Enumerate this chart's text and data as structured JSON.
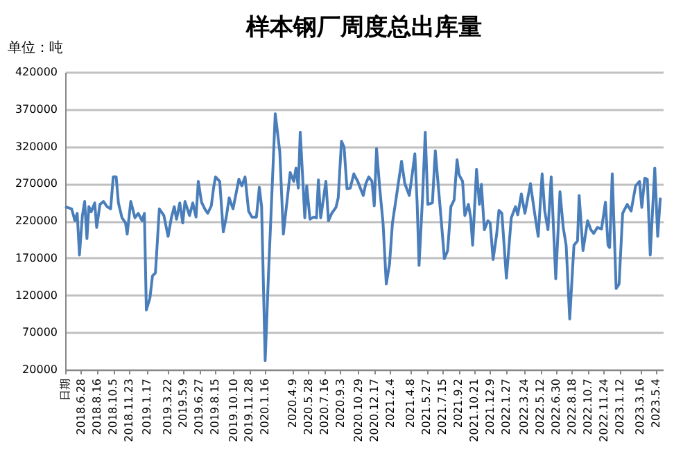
{
  "chart_data": {
    "type": "line",
    "title": "样本钢厂周度总出库量",
    "ylabel": "单位：吨",
    "color": "#4a7ebb",
    "grid": "y",
    "xlim": [
      "2018-05-10",
      "2023-05-25"
    ],
    "ylim": [
      20000,
      420000
    ],
    "yticks": [
      20000,
      70000,
      120000,
      170000,
      220000,
      270000,
      320000,
      370000,
      420000
    ],
    "xticks": [
      {
        "value": "2018-05-10",
        "label": "日期"
      },
      {
        "value": "2018-06-28",
        "label": "2018.6.28"
      },
      {
        "value": "2018-08-16",
        "label": "2018.8.16"
      },
      {
        "value": "2018-10-05",
        "label": "2018.10.5"
      },
      {
        "value": "2018-11-23",
        "label": "2018.11.23"
      },
      {
        "value": "2019-01-17",
        "label": "2019.1.17"
      },
      {
        "value": "2019-03-22",
        "label": "2019.3.22"
      },
      {
        "value": "2019-05-09",
        "label": "2019.5.9"
      },
      {
        "value": "2019-06-27",
        "label": "2019.6.27"
      },
      {
        "value": "2019-08-15",
        "label": "2019.8.15"
      },
      {
        "value": "2019-10-10",
        "label": "2019.10.10"
      },
      {
        "value": "2019-11-28",
        "label": "2019.11.28"
      },
      {
        "value": "2020-01-16",
        "label": "2020.1.16"
      },
      {
        "value": "2020-04-09",
        "label": "2020.4.9"
      },
      {
        "value": "2020-05-28",
        "label": "2020.5.28"
      },
      {
        "value": "2020-07-16",
        "label": "2020.7.16"
      },
      {
        "value": "2020-09-03",
        "label": "2020.9.3"
      },
      {
        "value": "2020-10-29",
        "label": "2020.10.29"
      },
      {
        "value": "2020-12-17",
        "label": "2020.12.17"
      },
      {
        "value": "2021-02-04",
        "label": "2021.2.4"
      },
      {
        "value": "2021-04-08",
        "label": "2021.4.8"
      },
      {
        "value": "2021-05-27",
        "label": "2021.5.27"
      },
      {
        "value": "2021-07-15",
        "label": "2021.7.15"
      },
      {
        "value": "2021-09-02",
        "label": "2021.9.2"
      },
      {
        "value": "2021-10-21",
        "label": "2021.10.21"
      },
      {
        "value": "2021-12-09",
        "label": "2021.12.9"
      },
      {
        "value": "2022-01-27",
        "label": "2022.1.27"
      },
      {
        "value": "2022-03-24",
        "label": "2022.3.24"
      },
      {
        "value": "2022-05-12",
        "label": "2022.5.12"
      },
      {
        "value": "2022-06-30",
        "label": "2022.6.30"
      },
      {
        "value": "2022-08-18",
        "label": "2022.8.18"
      },
      {
        "value": "2022-10-07",
        "label": "2022.10.7"
      },
      {
        "value": "2022-11-24",
        "label": "2022.11.24"
      },
      {
        "value": "2023-01-12",
        "label": "2023.1.12"
      },
      {
        "value": "2023-03-16",
        "label": "2023.3.16"
      },
      {
        "value": "2023-05-04",
        "label": "2023.5.4"
      }
    ],
    "x": [
      "2018-05-10",
      "2018-05-30",
      "2018-06-09",
      "2018-06-16",
      "2018-06-23",
      "2018-07-02",
      "2018-07-09",
      "2018-07-16",
      "2018-07-22",
      "2018-07-29",
      "2018-08-09",
      "2018-08-15",
      "2018-08-25",
      "2018-09-05",
      "2018-09-16",
      "2018-09-27",
      "2018-10-05",
      "2018-10-14",
      "2018-10-21",
      "2018-11-01",
      "2018-11-12",
      "2018-11-17",
      "2018-11-28",
      "2018-12-11",
      "2018-12-21",
      "2019-01-02",
      "2019-01-09",
      "2019-01-15",
      "2019-01-26",
      "2019-02-03",
      "2019-02-12",
      "2019-02-24",
      "2019-03-10",
      "2019-03-23",
      "2019-04-02",
      "2019-04-11",
      "2019-04-18",
      "2019-04-28",
      "2019-05-07",
      "2019-05-14",
      "2019-05-28",
      "2019-06-07",
      "2019-06-17",
      "2019-06-24",
      "2019-07-04",
      "2019-07-14",
      "2019-07-23",
      "2019-08-03",
      "2019-08-10",
      "2019-08-16",
      "2019-08-29",
      "2019-09-09",
      "2019-09-19",
      "2019-09-27",
      "2019-10-09",
      "2019-10-27",
      "2019-11-05",
      "2019-11-15",
      "2019-11-26",
      "2019-12-06",
      "2019-12-20",
      "2019-12-29",
      "2020-01-05",
      "2020-01-16",
      "2020-01-26",
      "2020-02-16",
      "2020-03-01",
      "2020-03-12",
      "2020-04-02",
      "2020-04-13",
      "2020-04-20",
      "2020-04-27",
      "2020-05-03",
      "2020-05-10",
      "2020-05-17",
      "2020-05-23",
      "2020-06-02",
      "2020-06-13",
      "2020-06-22",
      "2020-06-28",
      "2020-07-05",
      "2020-07-12",
      "2020-07-21",
      "2020-07-29",
      "2020-08-08",
      "2020-08-21",
      "2020-08-28",
      "2020-09-07",
      "2020-09-15",
      "2020-09-24",
      "2020-10-04",
      "2020-10-15",
      "2020-10-27",
      "2020-11-13",
      "2020-11-21",
      "2020-11-30",
      "2020-12-10",
      "2020-12-17",
      "2020-12-24",
      "2021-01-03",
      "2021-01-13",
      "2021-01-23",
      "2021-02-02",
      "2021-02-11",
      "2021-02-25",
      "2021-03-11",
      "2021-03-21",
      "2021-04-04",
      "2021-04-13",
      "2021-04-21",
      "2021-04-28",
      "2021-05-04",
      "2021-05-15",
      "2021-05-23",
      "2021-05-31",
      "2021-06-14",
      "2021-06-23",
      "2021-07-01",
      "2021-07-10",
      "2021-07-21",
      "2021-07-31",
      "2021-08-10",
      "2021-08-20",
      "2021-08-29",
      "2021-09-04",
      "2021-09-15",
      "2021-09-22",
      "2021-10-03",
      "2021-10-10",
      "2021-10-16",
      "2021-10-28",
      "2021-11-06",
      "2021-11-12",
      "2021-11-21",
      "2021-12-02",
      "2021-12-09",
      "2021-12-18",
      "2021-12-29",
      "2022-01-05",
      "2022-01-14",
      "2022-01-28",
      "2022-02-12",
      "2022-02-25",
      "2022-03-04",
      "2022-03-15",
      "2022-03-26",
      "2022-04-12",
      "2022-04-25",
      "2022-05-06",
      "2022-05-18",
      "2022-05-26",
      "2022-06-05",
      "2022-06-15",
      "2022-06-29",
      "2022-07-12",
      "2022-07-22",
      "2022-07-31",
      "2022-08-11",
      "2022-08-24",
      "2022-09-04",
      "2022-09-09",
      "2022-09-21",
      "2022-10-05",
      "2022-10-15",
      "2022-10-24",
      "2022-11-04",
      "2022-11-17",
      "2022-11-29",
      "2022-12-07",
      "2022-12-12",
      "2022-12-20",
      "2023-01-01",
      "2023-01-10",
      "2023-01-21",
      "2023-02-04",
      "2023-02-16",
      "2023-03-02",
      "2023-03-14",
      "2023-03-21",
      "2023-03-30",
      "2023-04-07",
      "2023-04-16",
      "2023-04-30",
      "2023-05-09",
      "2023-05-17"
    ],
    "values": [
      239000,
      236000,
      220000,
      230000,
      174000,
      227000,
      246000,
      196000,
      239000,
      232000,
      244000,
      211000,
      242000,
      246000,
      239000,
      236000,
      279000,
      279000,
      244000,
      224000,
      217000,
      202000,
      246000,
      224000,
      230000,
      220000,
      230000,
      100000,
      116000,
      146000,
      150000,
      236000,
      227000,
      199000,
      224000,
      239000,
      222000,
      244000,
      217000,
      246000,
      227000,
      244000,
      225000,
      273000,
      245000,
      236000,
      230000,
      240000,
      264000,
      279000,
      273000,
      205000,
      227000,
      251000,
      236000,
      276000,
      267000,
      279000,
      233000,
      225000,
      225000,
      265000,
      239000,
      32000,
      146000,
      364000,
      313000,
      202000,
      285000,
      273000,
      291000,
      264000,
      339000,
      282000,
      224000,
      267000,
      222000,
      225000,
      224000,
      275000,
      224000,
      245000,
      273000,
      220000,
      230000,
      238000,
      251000,
      327000,
      319000,
      263000,
      264000,
      283000,
      273000,
      254000,
      270000,
      279000,
      273000,
      240000,
      317000,
      263000,
      217000,
      135000,
      162000,
      217000,
      258000,
      300000,
      270000,
      254000,
      283000,
      310000,
      244000,
      160000,
      254000,
      339000,
      242000,
      244000,
      314000,
      273000,
      227000,
      169000,
      180000,
      239000,
      248000,
      302000,
      282000,
      273000,
      227000,
      242000,
      224000,
      187000,
      289000,
      242000,
      269000,
      208000,
      220000,
      217000,
      168000,
      202000,
      234000,
      230000,
      143000,
      224000,
      239000,
      228000,
      256000,
      230000,
      270000,
      230000,
      199000,
      283000,
      233000,
      208000,
      279000,
      142000,
      259000,
      211000,
      187000,
      88000,
      187000,
      193000,
      254000,
      180000,
      220000,
      208000,
      203000,
      211000,
      209000,
      245000,
      187000,
      184000,
      283000,
      129000,
      135000,
      230000,
      242000,
      233000,
      267000,
      273000,
      238000,
      277000,
      276000,
      174000,
      291000,
      199000,
      251000
    ]
  }
}
